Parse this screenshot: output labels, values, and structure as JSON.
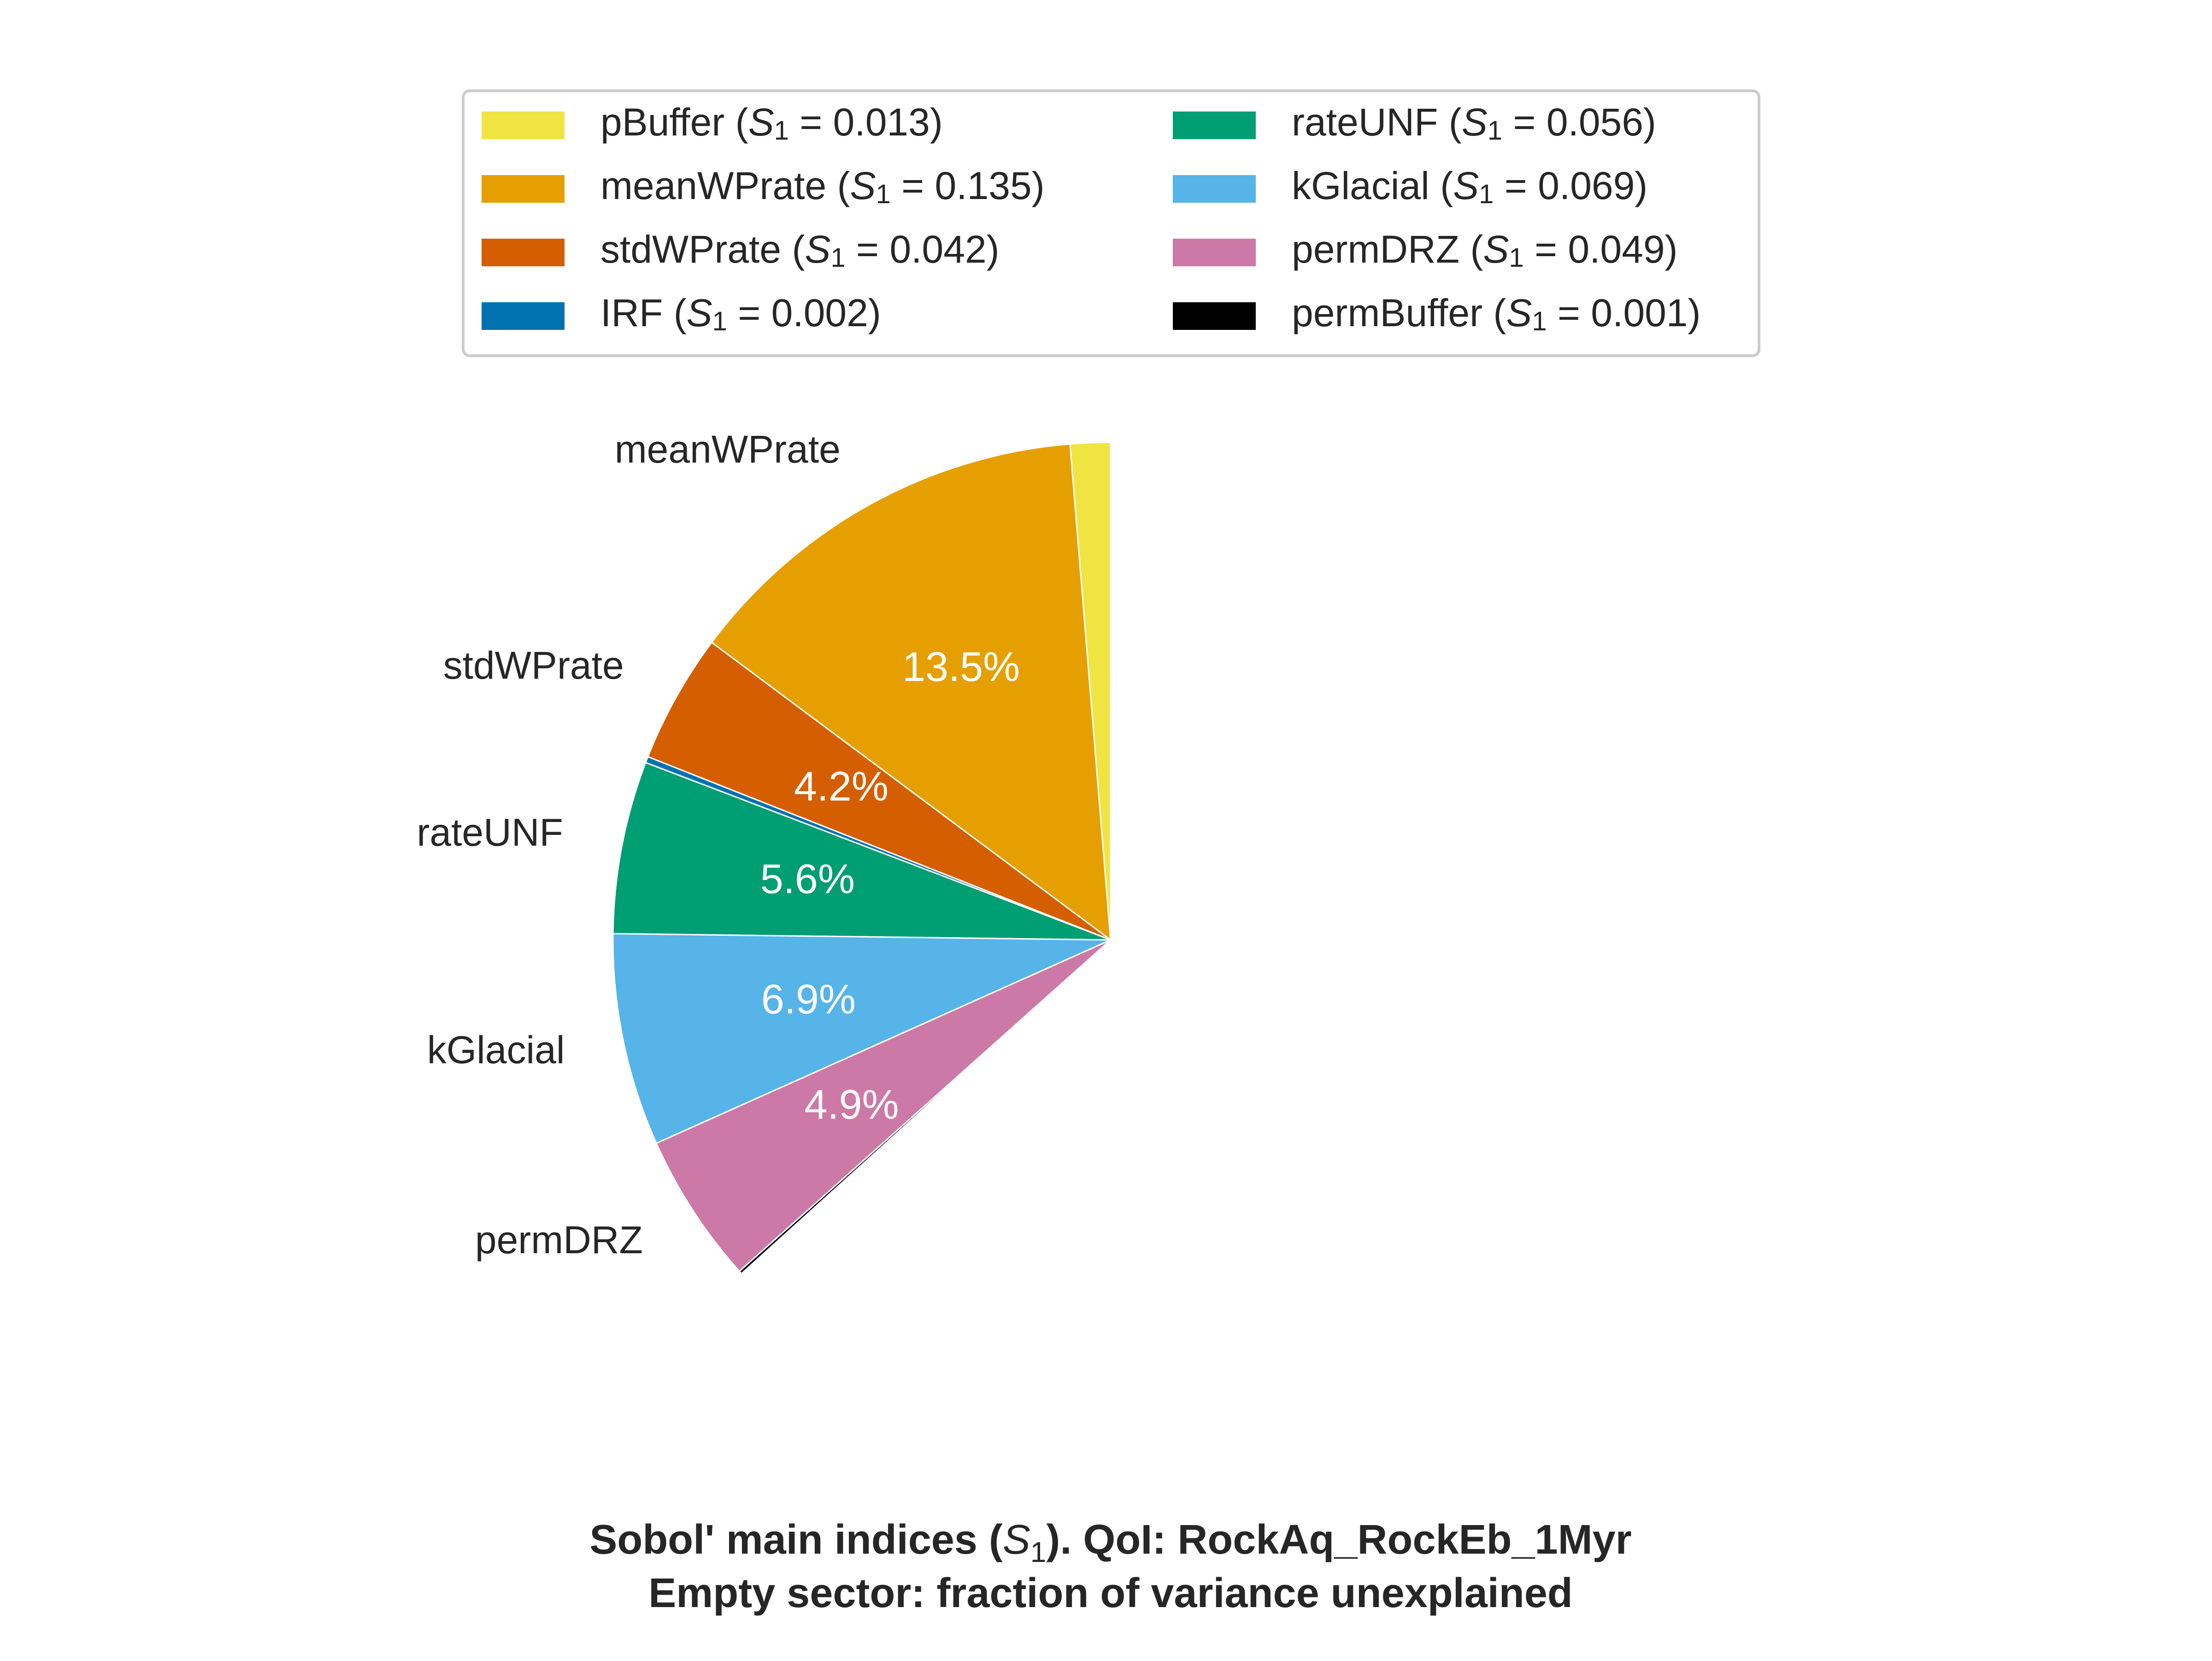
{
  "chart_data": {
    "type": "pie",
    "title": "Sobol' main indices (S₁). QoI: RockAq_RockEb_1Myr",
    "title_parts": {
      "prefix": "Sobol' main indices (",
      "symbol": "S",
      "subscript": "1",
      "suffix": "). QoI: RockAq_RockEb_1Myr"
    },
    "subtitle": "Empty sector: fraction of variance unexplained",
    "legend_position": "top",
    "legend_columns": 2,
    "start_angle_deg": 90,
    "direction": "counterclockwise",
    "slices": [
      {
        "name": "pBuffer",
        "value": 0.013,
        "color": "#F0E442",
        "legend_value": "0.013",
        "label": "",
        "pct_label": ""
      },
      {
        "name": "meanWPrate",
        "value": 0.135,
        "color": "#E69F00",
        "legend_value": "0.135",
        "label": "meanWPrate",
        "pct_label": "13.5%"
      },
      {
        "name": "stdWPrate",
        "value": 0.042,
        "color": "#D55E00",
        "legend_value": "0.042",
        "label": "stdWPrate",
        "pct_label": "4.2%"
      },
      {
        "name": "IRF",
        "value": 0.002,
        "color": "#0072B2",
        "legend_value": "0.002",
        "label": "",
        "pct_label": ""
      },
      {
        "name": "rateUNF",
        "value": 0.056,
        "color": "#009E73",
        "legend_value": "0.056",
        "label": "rateUNF",
        "pct_label": "5.6%"
      },
      {
        "name": "kGlacial",
        "value": 0.069,
        "color": "#56B4E9",
        "legend_value": "0.069",
        "label": "kGlacial",
        "pct_label": "6.9%"
      },
      {
        "name": "permDRZ",
        "value": 0.049,
        "color": "#CC79A7",
        "legend_value": "0.049",
        "label": "permDRZ",
        "pct_label": "4.9%"
      },
      {
        "name": "permBuffer",
        "value": 0.001,
        "color": "#000000",
        "legend_value": "0.001",
        "label": "",
        "pct_label": ""
      }
    ],
    "legend_order": [
      "pBuffer",
      "meanWPrate",
      "stdWPrate",
      "IRF",
      "rateUNF",
      "kGlacial",
      "permDRZ",
      "permBuffer"
    ],
    "legend_symbol": "S",
    "legend_subscript": "1",
    "legend_equals": " = "
  }
}
